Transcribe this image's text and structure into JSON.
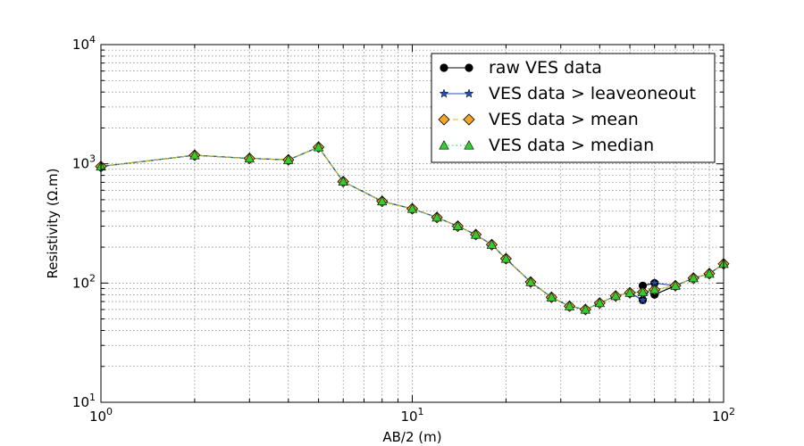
{
  "chart_data": {
    "type": "line",
    "title": "",
    "xlabel": "AB/2 (m)",
    "ylabel": "Resistivity (Ω.m)",
    "xscale": "log",
    "yscale": "log",
    "xlim": [
      1,
      100
    ],
    "ylim": [
      10,
      10000
    ],
    "grid": true,
    "legend_position": "top-right",
    "x_tick_labels": [
      {
        "value": 1,
        "base": "10",
        "exp": "0"
      },
      {
        "value": 10,
        "base": "10",
        "exp": "1"
      },
      {
        "value": 100,
        "base": "10",
        "exp": "2"
      }
    ],
    "y_tick_labels": [
      {
        "value": 10,
        "base": "10",
        "exp": "1"
      },
      {
        "value": 100,
        "base": "10",
        "exp": "2"
      },
      {
        "value": 1000,
        "base": "10",
        "exp": "3"
      },
      {
        "value": 10000,
        "base": "10",
        "exp": "4"
      }
    ],
    "series": [
      {
        "name": "raw VES data",
        "color": "#000000",
        "marker": "circle",
        "line_style": "solid",
        "x": [
          1,
          2,
          3,
          4,
          5,
          6,
          8,
          10,
          12,
          14,
          16,
          18,
          20,
          24,
          28,
          32,
          36,
          40,
          45,
          50,
          55,
          55,
          60,
          60,
          70,
          80,
          90,
          100
        ],
        "y": [
          950,
          1180,
          1110,
          1080,
          1380,
          710,
          485,
          420,
          355,
          300,
          255,
          210,
          160,
          102,
          76,
          64,
          60,
          68,
          78,
          83,
          72,
          95,
          100,
          80,
          95,
          110,
          120,
          145
        ]
      },
      {
        "name": "VES data > leaveoneout",
        "color": "#1f4fb4",
        "marker": "star",
        "line_style": "solid",
        "x": [
          1,
          2,
          3,
          4,
          5,
          6,
          8,
          10,
          12,
          14,
          16,
          18,
          20,
          24,
          28,
          32,
          36,
          40,
          45,
          50,
          55,
          60,
          70,
          80,
          90,
          100
        ],
        "y": [
          950,
          1180,
          1110,
          1080,
          1380,
          710,
          485,
          420,
          355,
          300,
          255,
          210,
          160,
          102,
          76,
          64,
          60,
          68,
          78,
          83,
          72,
          100,
          95,
          110,
          120,
          145
        ]
      },
      {
        "name": "VES data > mean",
        "color": "#f5a623",
        "marker": "diamond",
        "line_style": "dashed",
        "x": [
          1,
          2,
          3,
          4,
          5,
          6,
          8,
          10,
          12,
          14,
          16,
          18,
          20,
          24,
          28,
          32,
          36,
          40,
          45,
          50,
          55,
          60,
          70,
          80,
          90,
          100
        ],
        "y": [
          950,
          1180,
          1110,
          1080,
          1380,
          710,
          485,
          420,
          355,
          300,
          255,
          210,
          160,
          102,
          76,
          64,
          60,
          68,
          78,
          83,
          84,
          88,
          95,
          110,
          120,
          145
        ]
      },
      {
        "name": "VES data > median",
        "color": "#33cc33",
        "marker": "triangle",
        "line_style": "dotted",
        "x": [
          1,
          2,
          3,
          4,
          5,
          6,
          8,
          10,
          12,
          14,
          16,
          18,
          20,
          24,
          28,
          32,
          36,
          40,
          45,
          50,
          55,
          60,
          70,
          80,
          90,
          100
        ],
        "y": [
          950,
          1180,
          1110,
          1080,
          1380,
          710,
          485,
          420,
          355,
          300,
          255,
          210,
          160,
          102,
          76,
          64,
          60,
          68,
          78,
          83,
          84,
          88,
          95,
          110,
          120,
          145
        ]
      }
    ]
  }
}
